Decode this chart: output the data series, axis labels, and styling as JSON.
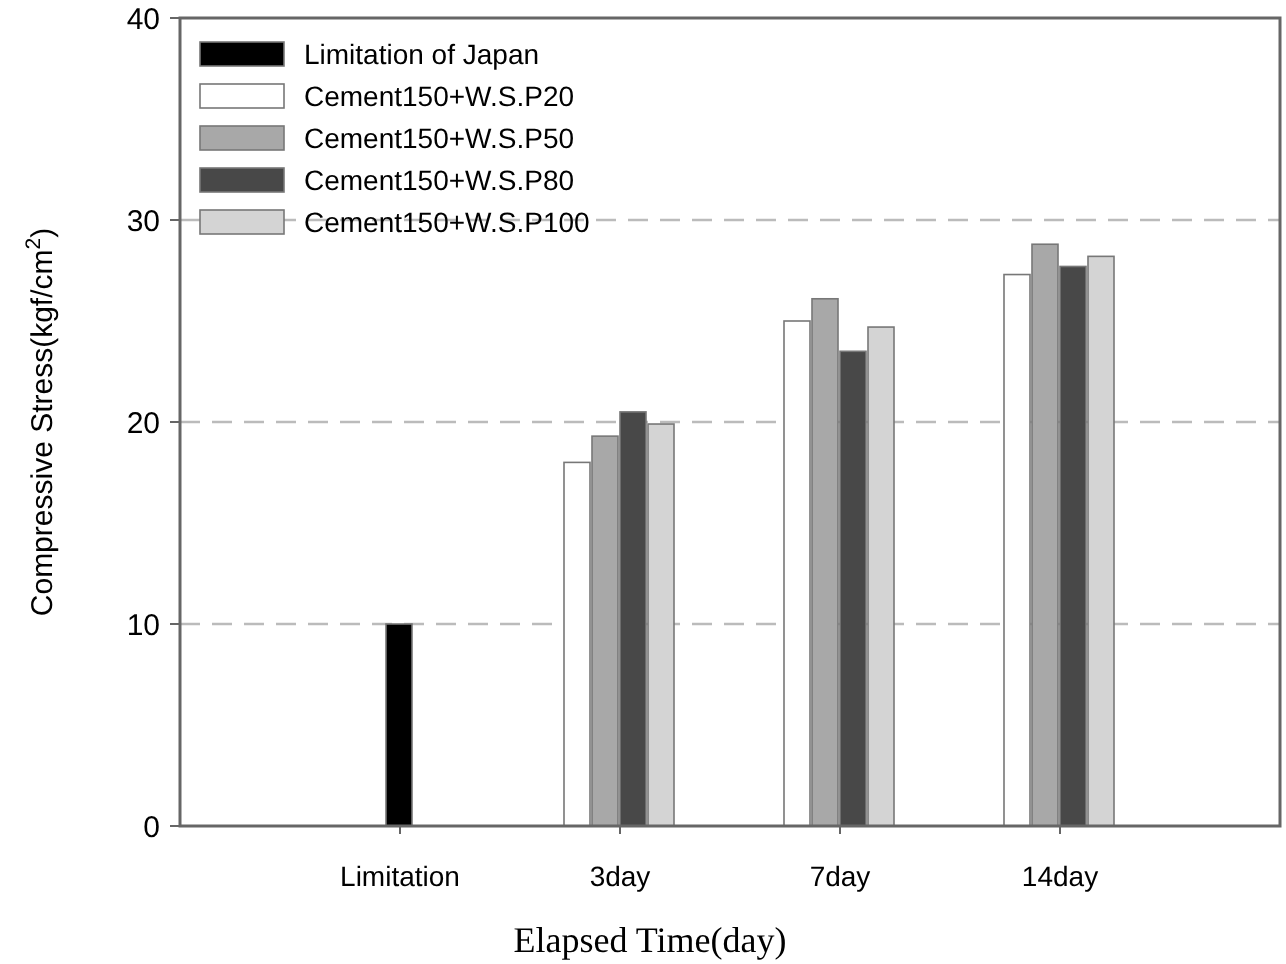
{
  "chart_data": {
    "type": "bar",
    "xlabel": "Elapsed Time(day)",
    "ylabel": "Compressive Stress(kgf/cm$^{2}$)",
    "categories": [
      "Limitation",
      "3day",
      "7day",
      "14day"
    ],
    "series": [
      {
        "name": "Limitation of Japan",
        "color": "#000000",
        "values": [
          10,
          null,
          null,
          null
        ]
      },
      {
        "name": "Cement150+W.S.P20",
        "color": "#ffffff",
        "values": [
          null,
          18,
          25,
          27.3
        ]
      },
      {
        "name": "Cement150+W.S.P50",
        "color": "#a8a8a8",
        "values": [
          null,
          19.3,
          26.1,
          28.8
        ]
      },
      {
        "name": "Cement150+W.S.P80",
        "color": "#484848",
        "values": [
          null,
          20.5,
          23.5,
          27.7
        ]
      },
      {
        "name": "Cement150+W.S.P100",
        "color": "#d4d4d4",
        "values": [
          null,
          19.9,
          24.7,
          28.2
        ]
      }
    ],
    "ylim": [
      0,
      40
    ],
    "yticks": [
      0,
      10,
      20,
      30,
      40
    ],
    "grid": "y",
    "legend": "top left"
  }
}
